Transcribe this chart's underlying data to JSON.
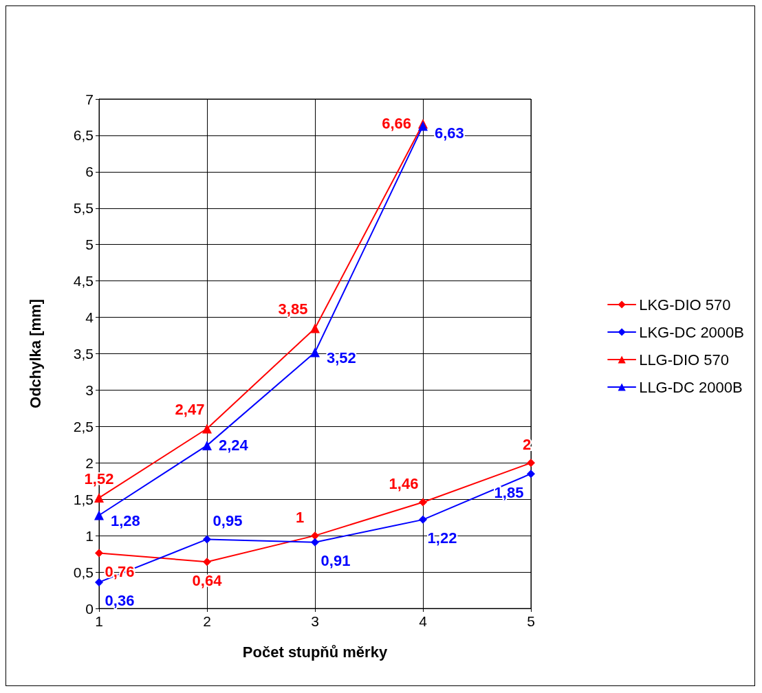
{
  "chart_data": {
    "type": "line",
    "xlabel": "Počet stupňů měrky",
    "ylabel": "Odchylka [mm]",
    "x": [
      1,
      2,
      3,
      4,
      5
    ],
    "xlim": [
      1,
      5
    ],
    "xticks": [
      1,
      2,
      3,
      4,
      5
    ],
    "ylim": [
      0,
      7
    ],
    "yticks": [
      0,
      {
        "value": 0.5,
        "label": "0,5"
      },
      1,
      {
        "value": 1.5,
        "label": "1,5"
      },
      2,
      {
        "value": 2.5,
        "label": "2,5"
      },
      3,
      {
        "value": 3.5,
        "label": "3,5"
      },
      4,
      {
        "value": 4.5,
        "label": "4,5"
      },
      5,
      {
        "value": 5.5,
        "label": "5,5"
      },
      6,
      {
        "value": 6.5,
        "label": "6,5"
      },
      7
    ],
    "grid": true,
    "legend": "right",
    "line_style": "solid",
    "series": [
      {
        "name": "LKG-DIO 570",
        "color": "#ff0000",
        "marker": "diamond",
        "values": [
          0.76,
          0.64,
          1,
          1.46,
          2
        ],
        "value_labels": [
          "0,76",
          "0,64",
          "1",
          "1,46",
          "2"
        ]
      },
      {
        "name": "LKG-DC 2000B",
        "color": "#0000ff",
        "marker": "diamond",
        "values": [
          0.36,
          0.95,
          0.91,
          1.22,
          1.85
        ],
        "value_labels": [
          "0,36",
          "0,95",
          "0,91",
          "1,22",
          "1,85"
        ]
      },
      {
        "name": "LLG-DIO 570",
        "color": "#ff0000",
        "marker": "triangle",
        "values": [
          1.52,
          2.47,
          3.85,
          6.66,
          null
        ],
        "value_labels": [
          "1,52",
          "2,47",
          "3,85",
          "6,66",
          null
        ]
      },
      {
        "name": "LLG-DC 2000B",
        "color": "#0000ff",
        "marker": "triangle",
        "values": [
          1.28,
          2.24,
          3.52,
          6.63,
          null
        ],
        "value_labels": [
          "1,28",
          "2,24",
          "3,52",
          "6,63",
          null
        ]
      }
    ]
  }
}
